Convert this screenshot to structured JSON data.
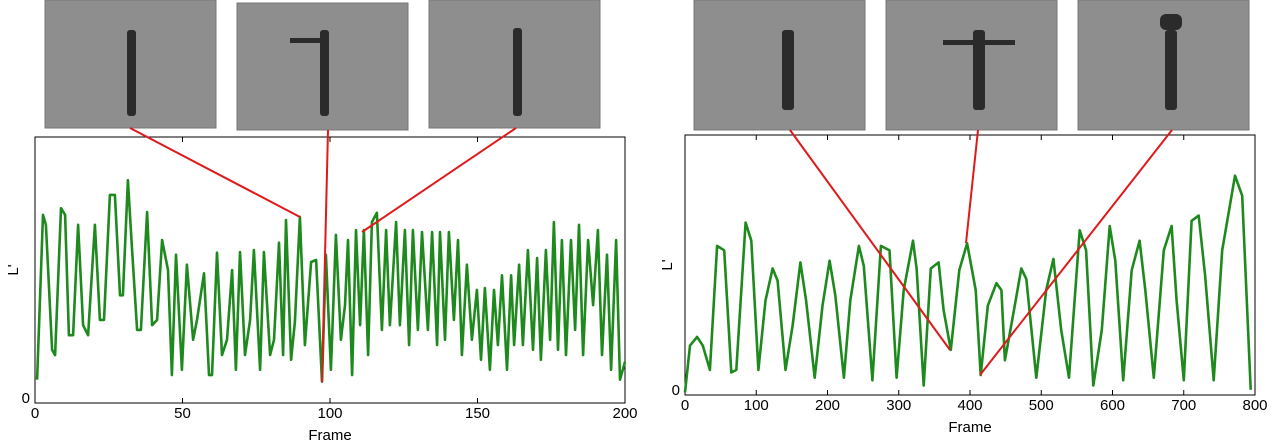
{
  "chart_data": [
    {
      "type": "line",
      "xlabel": "Frame",
      "ylabel": "L'",
      "xlim": [
        0,
        200
      ],
      "xticks": [
        0,
        50,
        100,
        150,
        200
      ],
      "ylim": [
        0,
        4
      ],
      "yticks": [
        0
      ],
      "series": [
        {
          "color": "#1e8a1e",
          "x": [
            0.7,
            2.7,
            3.7,
            5.8,
            6.8,
            8.8,
            10.2,
            11.5,
            12.9,
            14.6,
            16.3,
            18.0,
            20.3,
            22.0,
            23.4,
            25.4,
            27.1,
            28.8,
            29.8,
            31.5,
            32.9,
            34.6,
            35.9,
            38.0,
            39.7,
            41.4,
            43.1,
            45.1,
            46.4,
            47.8,
            49.8,
            51.5,
            53.6,
            54.9,
            57.3,
            59.0,
            60.0,
            61.7,
            63.4,
            65.1,
            66.8,
            68.1,
            69.5,
            71.2,
            72.9,
            74.2,
            76.3,
            77.6,
            79.7,
            81.0,
            82.7,
            84.1,
            85.1,
            86.8,
            88.1,
            89.8,
            91.5,
            93.6,
            95.3,
            97.3,
            98.6,
            100.3,
            102.0,
            103.7,
            105.1,
            106.1,
            107.5,
            108.8,
            110.2,
            111.5,
            112.9,
            114.2,
            115.9,
            117.6,
            119.0,
            120.3,
            122.4,
            123.7,
            125.4,
            126.8,
            128.1,
            129.8,
            131.2,
            133.2,
            134.6,
            136.3,
            137.3,
            139.0,
            140.3,
            142.0,
            143.4,
            144.7,
            146.4,
            148.1,
            149.8,
            151.2,
            152.5,
            154.2,
            155.6,
            156.9,
            158.3,
            160.0,
            161.4,
            162.4,
            164.1,
            165.4,
            167.1,
            168.8,
            170.2,
            171.5,
            173.2,
            174.6,
            175.9,
            177.3,
            178.6,
            180.0,
            181.7,
            183.1,
            184.4,
            185.8,
            187.5,
            189.2,
            190.8,
            192.2,
            193.9,
            195.3,
            197.0,
            198.3,
            200.0
          ],
          "values": [
            0.35,
            2.83,
            2.68,
            0.8,
            0.72,
            2.93,
            2.83,
            1.02,
            1.02,
            2.68,
            1.17,
            1.02,
            2.68,
            1.25,
            1.25,
            3.13,
            3.13,
            1.62,
            1.62,
            3.35,
            2.3,
            1.1,
            1.1,
            2.87,
            1.17,
            1.25,
            2.45,
            2.0,
            0.42,
            2.23,
            0.5,
            2.08,
            0.95,
            1.25,
            1.95,
            0.42,
            0.42,
            2.26,
            0.72,
            0.95,
            2.0,
            0.5,
            2.27,
            0.72,
            1.25,
            2.3,
            0.5,
            2.27,
            0.72,
            0.95,
            2.41,
            0.72,
            2.75,
            0.65,
            1.22,
            2.8,
            0.87,
            2.12,
            2.15,
            0.32,
            2.23,
            0.5,
            2.53,
            0.95,
            1.47,
            2.45,
            0.42,
            2.6,
            1.17,
            2.6,
            0.72,
            2.72,
            2.86,
            1.1,
            2.6,
            1.17,
            2.72,
            1.17,
            2.6,
            0.87,
            2.6,
            1.1,
            2.57,
            1.1,
            2.57,
            0.87,
            2.57,
            0.95,
            2.57,
            1.25,
            2.45,
            0.72,
            2.08,
            0.95,
            1.7,
            0.65,
            1.73,
            0.5,
            1.7,
            0.87,
            1.92,
            0.5,
            1.92,
            0.87,
            2.08,
            0.87,
            2.3,
            0.8,
            2.18,
            0.65,
            2.3,
            0.95,
            2.72,
            0.8,
            2.45,
            0.72,
            2.45,
            1.1,
            2.68,
            0.72,
            2.45,
            1.47,
            2.6,
            0.72,
            2.23,
            0.5,
            2.45,
            0.35,
            0.62
          ]
        }
      ]
    },
    {
      "type": "line",
      "xlabel": "Frame",
      "ylabel": "L'",
      "xlim": [
        0,
        800
      ],
      "xticks": [
        0,
        100,
        200,
        300,
        400,
        500,
        600,
        700,
        800
      ],
      "ylim": [
        0,
        3
      ],
      "yticks": [
        0
      ],
      "series": [
        {
          "color": "#1e8a1e",
          "x": [
            0,
            7,
            17,
            25,
            35,
            45,
            55,
            65,
            72,
            85,
            93,
            103,
            113,
            123,
            130,
            141,
            151,
            162,
            170,
            182,
            193,
            203,
            211,
            223,
            232,
            244,
            251,
            263,
            275,
            287,
            297,
            307,
            320,
            325,
            335,
            345,
            356,
            363,
            373,
            385,
            396,
            408,
            415,
            425,
            437,
            444,
            449,
            461,
            472,
            479,
            493,
            507,
            517,
            528,
            539,
            554,
            563,
            573,
            585,
            596,
            604,
            615,
            627,
            638,
            646,
            658,
            672,
            683,
            690,
            700,
            711,
            721,
            730,
            742,
            754,
            772,
            782,
            794
          ],
          "values": [
            0.03,
            0.57,
            0.67,
            0.57,
            0.29,
            1.72,
            1.67,
            0.26,
            0.29,
            1.99,
            1.78,
            0.29,
            1.09,
            1.46,
            1.32,
            0.29,
            0.8,
            1.53,
            1.09,
            0.2,
            1.03,
            1.55,
            1.15,
            0.2,
            1.09,
            1.72,
            1.49,
            0.17,
            1.72,
            1.67,
            0.2,
            1.21,
            1.78,
            1.46,
            0.11,
            1.46,
            1.53,
            0.98,
            0.52,
            1.44,
            1.75,
            1.21,
            0.23,
            1.03,
            1.29,
            1.21,
            0.4,
            0.95,
            1.46,
            1.34,
            0.2,
            1.21,
            1.57,
            0.75,
            0.2,
            1.9,
            1.67,
            0.11,
            0.75,
            1.95,
            1.55,
            0.17,
            1.44,
            1.78,
            1.21,
            0.2,
            1.67,
            1.95,
            1.09,
            0.17,
            2.01,
            2.07,
            1.38,
            0.17,
            1.67,
            2.53,
            2.3,
            0.06
          ]
        }
      ]
    }
  ]
}
